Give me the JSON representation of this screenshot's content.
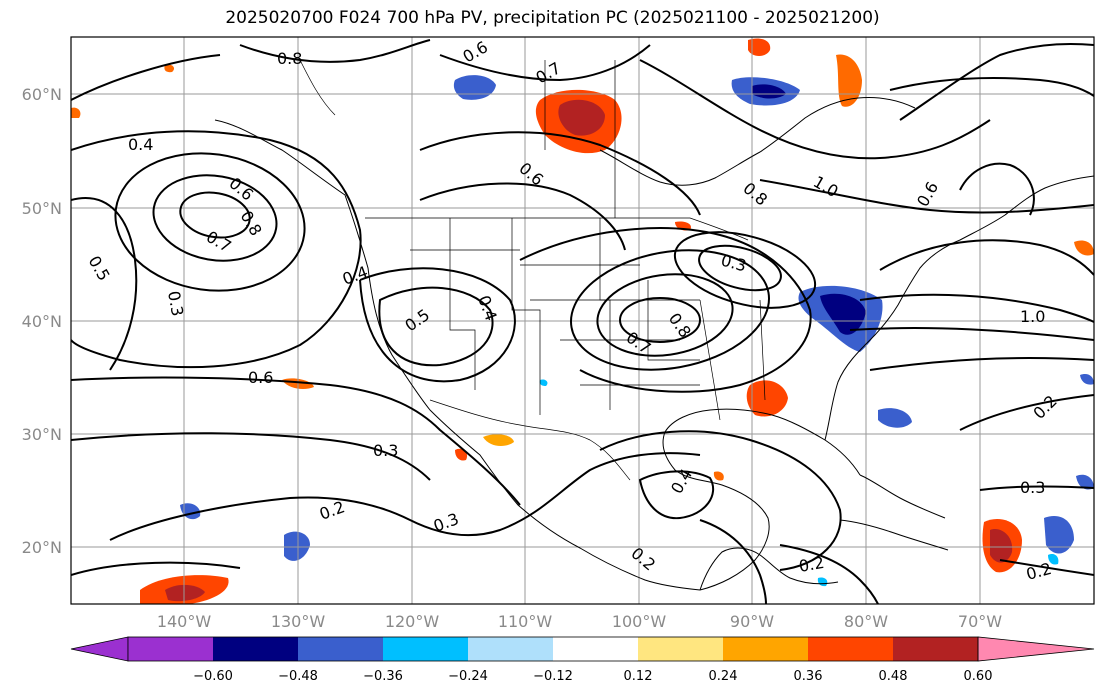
{
  "title": "2025020700 F024 700 hPa PV, precipitation PC (2025021100 - 2025021200)",
  "map": {
    "lat_labels": [
      "60°N",
      "50°N",
      "40°N",
      "30°N",
      "20°N"
    ],
    "lon_labels": [
      "140°W",
      "130°W",
      "120°W",
      "110°W",
      "100°W",
      "90°W",
      "80°W",
      "70°W"
    ],
    "contour_labels": [
      "0.4",
      "0.6",
      "0.7",
      "0.8",
      "0.5",
      "0.3",
      "0.6",
      "0.3",
      "0.2",
      "0.3",
      "0.8",
      "0.6",
      "0.7",
      "0.6",
      "1.0",
      "0.6",
      "0.3",
      "0.8",
      "0.7",
      "0.4",
      "0.2",
      "0.2",
      "1.0",
      "0.2",
      "0.3",
      "0.2",
      "0.4",
      "0.8",
      "0.5",
      "0.4"
    ]
  },
  "colorbar": {
    "ticks": [
      "−0.60",
      "−0.48",
      "−0.36",
      "−0.24",
      "−0.12",
      "0.12",
      "0.24",
      "0.36",
      "0.48",
      "0.60"
    ],
    "colors": [
      "#9b30d0",
      "#000080",
      "#3a5fcd",
      "#00bfff",
      "#afe0fb",
      "#ffffff",
      "#ffe680",
      "#ffa500",
      "#ff4500",
      "#b22222",
      "#ff88b0"
    ]
  }
}
